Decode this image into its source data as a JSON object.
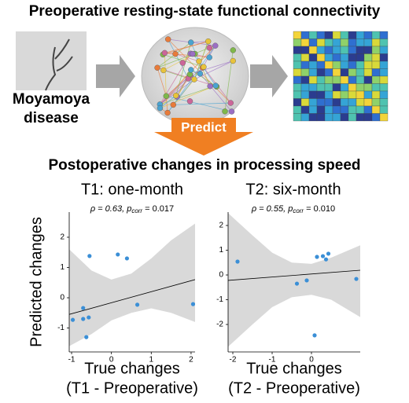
{
  "header": {
    "title": "Preoperative resting-state functional connectivity",
    "disease": [
      "Moyamoya",
      "disease"
    ],
    "predict": "Predict",
    "subtitle": "Postoperative changes in processing speed"
  },
  "chart_data": [
    {
      "type": "scatter",
      "title": "T1: one-month",
      "stat": {
        "rho": "ρ = 0.63, ",
        "p": "p",
        "sub": "corr",
        "rest": " = 0.017"
      },
      "y_label": "Predicted changes",
      "x_label": [
        "True changes",
        "(T1 - Preoperative)"
      ],
      "color": "#3b8fd6",
      "x": [
        -0.97,
        -0.71,
        -0.71,
        -0.57,
        -0.63,
        -0.55,
        0.16,
        0.39,
        0.65,
        2.05
      ],
      "values": [
        -0.73,
        -0.7,
        -0.34,
        -0.65,
        -1.3,
        1.38,
        1.43,
        1.3,
        -0.23,
        -0.21
      ],
      "fit": {
        "x": [
          -1.06,
          2.1
        ],
        "y": [
          -0.55,
          0.6
        ]
      },
      "ci": {
        "x": [
          -1.06,
          -0.5,
          0,
          0.5,
          1,
          1.5,
          2.1
        ],
        "upper": [
          1.6,
          0.9,
          0.6,
          0.8,
          1.3,
          1.9,
          2.45
        ],
        "lower": [
          -1.6,
          -1.2,
          -0.75,
          -0.5,
          -0.35,
          -0.5,
          -0.8
        ]
      },
      "xlim": [
        -1.06,
        2.1
      ],
      "ylim": [
        -1.79,
        2.83
      ],
      "xticks": [
        -1,
        0,
        1,
        2
      ],
      "yticks": [
        -1,
        0,
        1,
        2
      ]
    },
    {
      "type": "scatter",
      "title": "T2: six-month",
      "stat": {
        "rho": "ρ = 0.55, ",
        "p": "p",
        "sub": "corr",
        "rest": " = 0.010"
      },
      "x_label": [
        "True changes",
        "(T2 - Preoperative)"
      ],
      "color": "#3b8fd6",
      "x": [
        -1.88,
        -0.37,
        -0.12,
        0.08,
        0.14,
        0.29,
        0.37,
        0.43,
        1.14
      ],
      "values": [
        0.54,
        -0.35,
        -0.22,
        -2.44,
        0.73,
        0.76,
        0.63,
        0.86,
        -0.16
      ],
      "fit": {
        "x": [
          -2.12,
          1.24
        ],
        "y": [
          -0.22,
          0.19
        ]
      },
      "ci": {
        "x": [
          -2.12,
          -1.5,
          -1,
          -0.5,
          0,
          0.5,
          1.24
        ],
        "upper": [
          2.5,
          1.6,
          0.9,
          0.5,
          0.45,
          0.7,
          1.2
        ],
        "lower": [
          -2.9,
          -2.0,
          -1.3,
          -0.9,
          -0.8,
          -1.0,
          -1.7
        ]
      },
      "xlim": [
        -2.12,
        1.24
      ],
      "ylim": [
        -3.11,
        2.54
      ],
      "xticks": [
        -2,
        -1,
        0
      ],
      "yticks": [
        -2,
        -1,
        0,
        1,
        2
      ]
    }
  ]
}
